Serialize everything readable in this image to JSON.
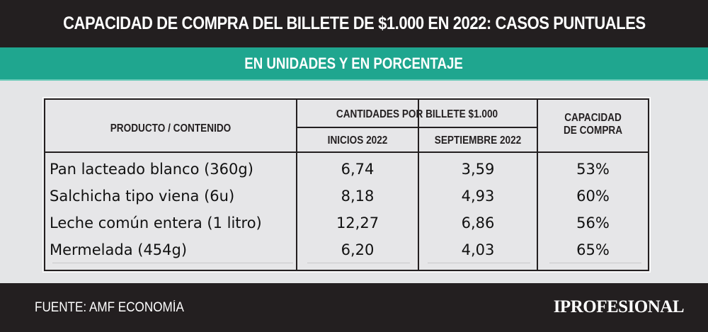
{
  "header": {
    "title": "CAPACIDAD DE COMPRA DEL BILLETE DE $1.000 EN 2022: CASOS PUNTUALES",
    "subtitle": "EN UNIDADES Y EN PORCENTAJE"
  },
  "table": {
    "columns": {
      "product": "PRODUCTO / CONTENIDO",
      "group": "CANTIDADES POR BILLETE  $1.000",
      "start": "INICIOS 2022",
      "september": "SEPTIEMBRE 2022",
      "capacity_line1": "CAPACIDAD",
      "capacity_line2": "DE COMPRA"
    },
    "rows": [
      {
        "product": "Pan lacteado blanco (360g)",
        "start": "6,74",
        "september": "3,59",
        "capacity": "53%"
      },
      {
        "product": "Salchicha tipo viena (6u)",
        "start": "8,18",
        "september": "4,93",
        "capacity": "60%"
      },
      {
        "product": "Leche común entera (1 litro)",
        "start": "12,27",
        "september": "6,86",
        "capacity": "56%"
      },
      {
        "product": "Mermelada (454g)",
        "start": "6,20",
        "september": "4,03",
        "capacity": "65%"
      }
    ]
  },
  "footer": {
    "source": "FUENTE: AMF ECONOMÍA",
    "brand": "IPROFESIONAL"
  },
  "colors": {
    "dark": "#231f20",
    "accent": "#1fa68f",
    "background": "#e4e5e7"
  }
}
